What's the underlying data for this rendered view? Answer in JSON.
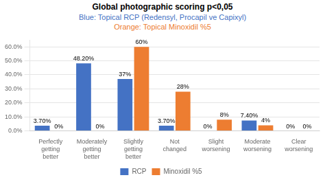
{
  "chart_data": {
    "type": "bar",
    "title": "Global photographic scoring p<0,05",
    "subtitle": [
      "Blue: Topical RCP (Redensyl, Procapil ve Capixyl)",
      "Orange: Topical Minoxidil %5"
    ],
    "categories": [
      "Perfectly\ngetting\nbetter",
      "Moderately\ngetting\nbetter",
      "Slightly\ngetting\nbetter",
      "Not\nchanged",
      "Slight\nworsening",
      "Moderate\nworsening",
      "Clear\nworsening"
    ],
    "series": [
      {
        "name": "RCP",
        "color": "#4472C4",
        "values": [
          3.7,
          48.2,
          37.0,
          3.7,
          0.0,
          7.4,
          0.0
        ],
        "value_labels": [
          "3.70%",
          "48.20%",
          "37%",
          "3.70%",
          "0%",
          "7.40%",
          "0%"
        ]
      },
      {
        "name": "Minoxidil %5",
        "color": "#ED7D31",
        "values": [
          0.0,
          0.0,
          60.0,
          28.0,
          8.0,
          4.0,
          0.0
        ],
        "value_labels": [
          "0%",
          "0%",
          "60%",
          "28%",
          "8%",
          "4%",
          "0%"
        ]
      }
    ],
    "ylim": [
      0,
      65
    ],
    "yticks": [
      {
        "value": 0,
        "label": "0.0%"
      },
      {
        "value": 10,
        "label": "10.0%"
      },
      {
        "value": 20,
        "label": "20.0%"
      },
      {
        "value": 30,
        "label": "30.0%"
      },
      {
        "value": 40,
        "label": "40.0%"
      },
      {
        "value": 50,
        "label": "50.0%"
      },
      {
        "value": 60,
        "label": "60.0%"
      }
    ],
    "grid": true,
    "legend": "bottom",
    "data_labels": true
  }
}
